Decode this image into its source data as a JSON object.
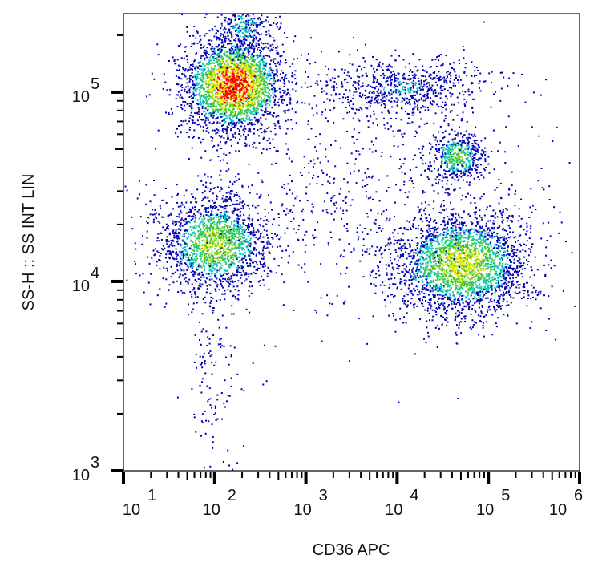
{
  "chart_data": {
    "type": "scatter",
    "subtype": "flow-cytometry-density-dot-plot",
    "xlabel": "CD36 APC",
    "ylabel": "SS-H :: SS INT LIN",
    "xscale": "log",
    "yscale": "log",
    "xlim": [
      10,
      1000000
    ],
    "ylim": [
      1000,
      260000
    ],
    "x_ticks": [
      {
        "base": "10",
        "exp": "1"
      },
      {
        "base": "10",
        "exp": "2"
      },
      {
        "base": "10",
        "exp": "3"
      },
      {
        "base": "10",
        "exp": "4"
      },
      {
        "base": "10",
        "exp": "5"
      },
      {
        "base": "10",
        "exp": "6"
      }
    ],
    "y_ticks": [
      {
        "base": "10",
        "exp": "3"
      },
      {
        "base": "10",
        "exp": "4"
      },
      {
        "base": "10",
        "exp": "5"
      }
    ],
    "grid": false,
    "color_scale": [
      "#0000b4",
      "#00c8c8",
      "#3cc83c",
      "#e6e600",
      "#ff0000"
    ],
    "populations": [
      {
        "x": 160,
        "y": 110000,
        "sx_decades": 0.28,
        "sy_decades": 0.13,
        "count": 2600,
        "peak": 1.0
      },
      {
        "x": 100,
        "y": 16000,
        "sx_decades": 0.3,
        "sy_decades": 0.13,
        "count": 1700,
        "peak": 0.65
      },
      {
        "x": 50000,
        "y": 12500,
        "sx_decades": 0.38,
        "sy_decades": 0.14,
        "count": 2600,
        "peak": 0.7
      },
      {
        "x": 45000,
        "y": 46000,
        "sx_decades": 0.16,
        "sy_decades": 0.07,
        "count": 500,
        "peak": 0.55
      },
      {
        "x": 12000,
        "y": 105000,
        "sx_decades": 0.45,
        "sy_decades": 0.08,
        "count": 700,
        "peak": 0.3
      },
      {
        "x": 200,
        "y": 220000,
        "sx_decades": 0.15,
        "sy_decades": 0.08,
        "count": 300,
        "peak": 0.4
      },
      {
        "x": 90,
        "y": 3000,
        "sx_decades": 0.15,
        "sy_decades": 0.25,
        "count": 120,
        "peak": 0.1
      },
      {
        "x": 3000,
        "y": 30000,
        "sx_decades": 1.0,
        "sy_decades": 0.35,
        "count": 700,
        "peak": 0.1
      }
    ]
  }
}
